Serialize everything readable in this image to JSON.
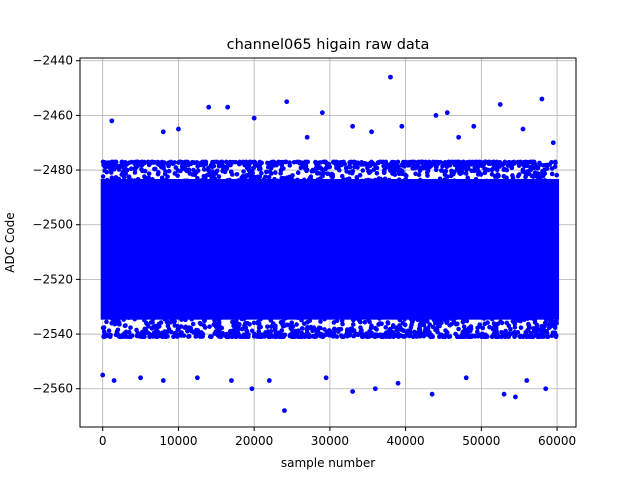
{
  "chart_data": {
    "type": "scatter",
    "title": "channel065 higain raw data",
    "xlabel": "sample number",
    "ylabel": "ADC Code",
    "xlim": [
      -3000,
      62500
    ],
    "ylim": [
      -2574,
      -2439
    ],
    "xticks": [
      0,
      10000,
      20000,
      30000,
      40000,
      50000,
      60000
    ],
    "yticks": [
      -2560,
      -2540,
      -2520,
      -2500,
      -2480,
      -2460,
      -2440
    ],
    "grid": true,
    "legend": "none",
    "marker_color": "#0000ff",
    "series": [
      {
        "n_samples": 60000,
        "x_range": [
          0,
          59999
        ],
        "bulk_y_range": [
          -2541,
          -2477
        ],
        "outliers": [
          {
            "x": 38000,
            "y": -2446
          },
          {
            "x": 24000,
            "y": -2568
          },
          {
            "x": 24300,
            "y": -2455
          },
          {
            "x": 16500,
            "y": -2457
          },
          {
            "x": 14000,
            "y": -2457
          },
          {
            "x": 58000,
            "y": -2454
          },
          {
            "x": 52500,
            "y": -2456
          },
          {
            "x": 29000,
            "y": -2459
          },
          {
            "x": 45500,
            "y": -2459
          },
          {
            "x": 44000,
            "y": -2460
          },
          {
            "x": 1200,
            "y": -2462
          },
          {
            "x": 10000,
            "y": -2465
          },
          {
            "x": 33000,
            "y": -2464
          },
          {
            "x": 39500,
            "y": -2464
          },
          {
            "x": 49000,
            "y": -2464
          },
          {
            "x": 55500,
            "y": -2465
          },
          {
            "x": 8000,
            "y": -2466
          },
          {
            "x": 20000,
            "y": -2461
          },
          {
            "x": 27000,
            "y": -2468
          },
          {
            "x": 35500,
            "y": -2466
          },
          {
            "x": 47000,
            "y": -2468
          },
          {
            "x": 59500,
            "y": -2470
          },
          {
            "x": 36000,
            "y": -2560
          },
          {
            "x": 19700,
            "y": -2560
          },
          {
            "x": 43500,
            "y": -2562
          },
          {
            "x": 53000,
            "y": -2562
          },
          {
            "x": 54500,
            "y": -2563
          },
          {
            "x": 33000,
            "y": -2561
          },
          {
            "x": 58500,
            "y": -2560
          },
          {
            "x": 1500,
            "y": -2557
          },
          {
            "x": 5000,
            "y": -2556
          },
          {
            "x": 8000,
            "y": -2557
          },
          {
            "x": 12500,
            "y": -2556
          },
          {
            "x": 17000,
            "y": -2557
          },
          {
            "x": 22000,
            "y": -2557
          },
          {
            "x": 29500,
            "y": -2556
          },
          {
            "x": 39000,
            "y": -2558
          },
          {
            "x": 48000,
            "y": -2556
          },
          {
            "x": 56000,
            "y": -2557
          },
          {
            "x": 0,
            "y": -2555
          }
        ]
      }
    ]
  }
}
